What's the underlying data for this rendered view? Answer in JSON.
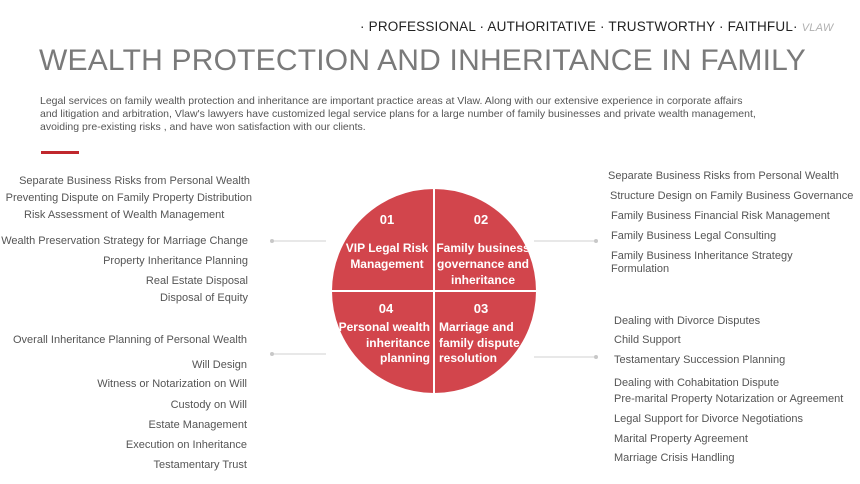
{
  "header": {
    "tagline": "· PROFESSIONAL · AUTHORITATIVE · TRUSTWORTHY · FAITHFUL·",
    "brand": "VLAW",
    "title": "WEALTH PROTECTION AND INHERITANCE IN FAMILY"
  },
  "intro": {
    "lines": [
      " Legal services on family wealth protection and inheritance are important practice areas at Vlaw.  Along with our extensive experience in corporate affairs",
      "and litigation and arbitration, Vlaw's lawyers have customized legal service plans for a large number of  family businesses and private wealth management,",
      "avoiding  pre-existing risks , and have won satisfaction with our  clients."
    ]
  },
  "colors": {
    "accent": "#c0272d",
    "quadrant": "#d2454c"
  },
  "quadrants": [
    {
      "number": "01",
      "lines": [
        "VIP Legal Risk",
        "Management"
      ]
    },
    {
      "number": "02",
      "lines": [
        "Family business",
        "governance and",
        "inheritance"
      ]
    },
    {
      "number": "03",
      "lines": [
        "Marriage and",
        "family dispute",
        "resolution"
      ]
    },
    {
      "number": "04",
      "lines": [
        "Personal wealth",
        "inheritance",
        "planning"
      ]
    }
  ],
  "groups": {
    "top_left": [
      "Separate Business Risks from Personal Wealth",
      "Preventing Dispute on Family Property Distribution",
      "Risk Assessment of Wealth Management",
      "Wealth Preservation Strategy for Marriage Change",
      "Property Inheritance Planning",
      "Real Estate Disposal",
      "Disposal of Equity"
    ],
    "top_right": [
      "Separate Business Risks from Personal Wealth",
      "Structure Design on Family Business Governance",
      "Family Business Financial Risk Management",
      "Family Business Legal Consulting",
      "Family Business Inheritance Strategy Formulation"
    ],
    "bottom_left": [
      "Overall Inheritance Planning of Personal Wealth",
      "Will Design",
      "Witness or Notarization on  Will",
      "Custody on  Will",
      "Estate Management",
      "Execution on Inheritance",
      "Testamentary Trust"
    ],
    "bottom_right": [
      "Dealing with Divorce Disputes",
      "Child Support",
      "Testamentary Succession Planning",
      "Dealing with Cohabitation Dispute",
      "Pre-marital Property Notarization or Agreement",
      "Legal Support for Divorce Negotiations",
      "Marital Property Agreement",
      "Marriage Crisis Handling"
    ]
  }
}
